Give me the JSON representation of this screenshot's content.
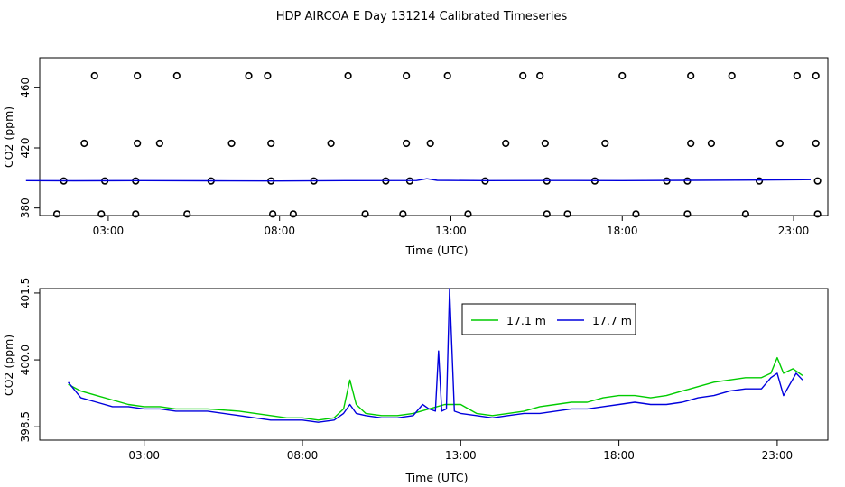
{
  "figure": {
    "title": "HDP AIRCOA E  Day 131214  Calibrated Timeseries"
  },
  "colors": {
    "s171": "#00cc00",
    "s177": "#0000dd",
    "axis": "#000000"
  },
  "chart_data": [
    {
      "type": "scatter",
      "xlabel": "Time (UTC)",
      "ylabel": "CO2 (ppm)",
      "xlim": [
        1.0,
        24.0
      ],
      "ylim": [
        375.0,
        480.0
      ],
      "x_ticks": [
        {
          "value": 3,
          "label": "03:00"
        },
        {
          "value": 8,
          "label": "08:00"
        },
        {
          "value": 13,
          "label": "13:00"
        },
        {
          "value": 18,
          "label": "18:00"
        },
        {
          "value": 23,
          "label": "23:00"
        }
      ],
      "y_ticks": [
        {
          "value": 380,
          "label": "380"
        },
        {
          "value": 420,
          "label": "420"
        },
        {
          "value": 460,
          "label": "460"
        }
      ],
      "grid": false,
      "points": [
        [
          1.5,
          376
        ],
        [
          2.8,
          376
        ],
        [
          3.8,
          376
        ],
        [
          5.3,
          376
        ],
        [
          7.8,
          376
        ],
        [
          8.4,
          376
        ],
        [
          10.5,
          376
        ],
        [
          11.6,
          376
        ],
        [
          13.5,
          376
        ],
        [
          15.8,
          376
        ],
        [
          16.4,
          376
        ],
        [
          18.4,
          376
        ],
        [
          19.9,
          376
        ],
        [
          21.6,
          376
        ],
        [
          23.7,
          376
        ],
        [
          1.7,
          398
        ],
        [
          2.9,
          398
        ],
        [
          3.8,
          398
        ],
        [
          6.0,
          398
        ],
        [
          7.75,
          398
        ],
        [
          9.0,
          398
        ],
        [
          11.1,
          398
        ],
        [
          11.8,
          398
        ],
        [
          14.0,
          398
        ],
        [
          15.8,
          398
        ],
        [
          17.2,
          398
        ],
        [
          19.3,
          398
        ],
        [
          19.9,
          398
        ],
        [
          22.0,
          398
        ],
        [
          23.7,
          398
        ],
        [
          2.3,
          423
        ],
        [
          3.85,
          423
        ],
        [
          4.5,
          423
        ],
        [
          6.6,
          423
        ],
        [
          7.75,
          423
        ],
        [
          9.5,
          423
        ],
        [
          11.7,
          423
        ],
        [
          12.4,
          423
        ],
        [
          14.6,
          423
        ],
        [
          15.75,
          423
        ],
        [
          17.5,
          423
        ],
        [
          20.0,
          423
        ],
        [
          20.6,
          423
        ],
        [
          22.6,
          423
        ],
        [
          23.65,
          423
        ],
        [
          2.6,
          468
        ],
        [
          3.85,
          468
        ],
        [
          5.0,
          468
        ],
        [
          7.1,
          468
        ],
        [
          7.65,
          468
        ],
        [
          10.0,
          468
        ],
        [
          11.7,
          468
        ],
        [
          12.9,
          468
        ],
        [
          15.1,
          468
        ],
        [
          15.6,
          468
        ],
        [
          18.0,
          468
        ],
        [
          20.0,
          468
        ],
        [
          21.2,
          468
        ],
        [
          23.1,
          468
        ],
        [
          23.65,
          468
        ]
      ],
      "series": [
        {
          "name": "",
          "values": [
            [
              0.6,
              398.2
            ],
            [
              2.0,
              398.1
            ],
            [
              4.0,
              398.2
            ],
            [
              6.0,
              398.1
            ],
            [
              8.0,
              398.0
            ],
            [
              10.0,
              398.2
            ],
            [
              12.0,
              398.3
            ],
            [
              12.3,
              399.5
            ],
            [
              12.6,
              398.4
            ],
            [
              14.0,
              398.2
            ],
            [
              16.0,
              398.3
            ],
            [
              18.0,
              398.2
            ],
            [
              20.0,
              398.4
            ],
            [
              22.0,
              398.6
            ],
            [
              23.5,
              398.9
            ]
          ]
        }
      ]
    },
    {
      "type": "line",
      "xlabel": "Time (UTC)",
      "ylabel": "CO2 (ppm)",
      "xlim": [
        -0.3,
        24.6
      ],
      "ylim": [
        398.2,
        401.6
      ],
      "x_ticks": [
        {
          "value": 3,
          "label": "03:00"
        },
        {
          "value": 8,
          "label": "08:00"
        },
        {
          "value": 13,
          "label": "13:00"
        },
        {
          "value": 18,
          "label": "18:00"
        },
        {
          "value": 23,
          "label": "23:00"
        }
      ],
      "y_ticks": [
        {
          "value": 398.5,
          "label": "398.5"
        },
        {
          "value": 400.0,
          "label": "400.0"
        },
        {
          "value": 401.5,
          "label": "401.5"
        }
      ],
      "grid": false,
      "legend": "top-center",
      "series": [
        {
          "name": "17.1 m",
          "color": "#00cc00",
          "values": [
            [
              0.6,
              399.45
            ],
            [
              1.0,
              399.3
            ],
            [
              1.5,
              399.2
            ],
            [
              2.0,
              399.1
            ],
            [
              2.5,
              399.0
            ],
            [
              3.0,
              398.95
            ],
            [
              3.5,
              398.95
            ],
            [
              4.0,
              398.9
            ],
            [
              5.0,
              398.9
            ],
            [
              6.0,
              398.85
            ],
            [
              7.0,
              398.75
            ],
            [
              7.5,
              398.7
            ],
            [
              8.0,
              398.7
            ],
            [
              8.5,
              398.65
            ],
            [
              9.0,
              398.7
            ],
            [
              9.3,
              398.9
            ],
            [
              9.5,
              399.55
            ],
            [
              9.7,
              399.0
            ],
            [
              10.0,
              398.8
            ],
            [
              10.5,
              398.75
            ],
            [
              11.0,
              398.75
            ],
            [
              11.5,
              398.8
            ],
            [
              12.0,
              398.9
            ],
            [
              12.5,
              399.0
            ],
            [
              13.0,
              399.0
            ],
            [
              13.5,
              398.8
            ],
            [
              14.0,
              398.75
            ],
            [
              14.5,
              398.8
            ],
            [
              15.0,
              398.85
            ],
            [
              15.5,
              398.95
            ],
            [
              16.0,
              399.0
            ],
            [
              16.5,
              399.05
            ],
            [
              17.0,
              399.05
            ],
            [
              17.5,
              399.15
            ],
            [
              18.0,
              399.2
            ],
            [
              18.5,
              399.2
            ],
            [
              19.0,
              399.15
            ],
            [
              19.5,
              399.2
            ],
            [
              20.0,
              399.3
            ],
            [
              20.5,
              399.4
            ],
            [
              21.0,
              399.5
            ],
            [
              21.5,
              399.55
            ],
            [
              22.0,
              399.6
            ],
            [
              22.5,
              399.6
            ],
            [
              22.8,
              399.7
            ],
            [
              23.0,
              400.05
            ],
            [
              23.2,
              399.7
            ],
            [
              23.5,
              399.8
            ],
            [
              23.8,
              399.65
            ]
          ]
        },
        {
          "name": "17.7 m",
          "color": "#0000dd",
          "values": [
            [
              0.6,
              399.5
            ],
            [
              1.0,
              399.15
            ],
            [
              1.5,
              399.05
            ],
            [
              2.0,
              398.95
            ],
            [
              2.5,
              398.95
            ],
            [
              3.0,
              398.9
            ],
            [
              3.5,
              398.9
            ],
            [
              4.0,
              398.85
            ],
            [
              5.0,
              398.85
            ],
            [
              6.0,
              398.75
            ],
            [
              7.0,
              398.65
            ],
            [
              7.5,
              398.65
            ],
            [
              8.0,
              398.65
            ],
            [
              8.5,
              398.6
            ],
            [
              9.0,
              398.65
            ],
            [
              9.3,
              398.8
            ],
            [
              9.5,
              399.0
            ],
            [
              9.7,
              398.8
            ],
            [
              10.0,
              398.75
            ],
            [
              10.5,
              398.7
            ],
            [
              11.0,
              398.7
            ],
            [
              11.5,
              398.75
            ],
            [
              11.8,
              399.0
            ],
            [
              12.0,
              398.9
            ],
            [
              12.2,
              398.85
            ],
            [
              12.3,
              400.2
            ],
            [
              12.4,
              398.85
            ],
            [
              12.55,
              398.9
            ],
            [
              12.65,
              401.6
            ],
            [
              12.8,
              398.85
            ],
            [
              13.0,
              398.8
            ],
            [
              13.5,
              398.75
            ],
            [
              14.0,
              398.7
            ],
            [
              14.5,
              398.75
            ],
            [
              15.0,
              398.8
            ],
            [
              15.5,
              398.8
            ],
            [
              16.0,
              398.85
            ],
            [
              16.5,
              398.9
            ],
            [
              17.0,
              398.9
            ],
            [
              17.5,
              398.95
            ],
            [
              18.0,
              399.0
            ],
            [
              18.5,
              399.05
            ],
            [
              19.0,
              399.0
            ],
            [
              19.5,
              399.0
            ],
            [
              20.0,
              399.05
            ],
            [
              20.5,
              399.15
            ],
            [
              21.0,
              399.2
            ],
            [
              21.5,
              399.3
            ],
            [
              22.0,
              399.35
            ],
            [
              22.5,
              399.35
            ],
            [
              22.8,
              399.6
            ],
            [
              23.0,
              399.7
            ],
            [
              23.2,
              399.2
            ],
            [
              23.4,
              399.45
            ],
            [
              23.6,
              399.7
            ],
            [
              23.8,
              399.55
            ]
          ]
        }
      ]
    }
  ]
}
